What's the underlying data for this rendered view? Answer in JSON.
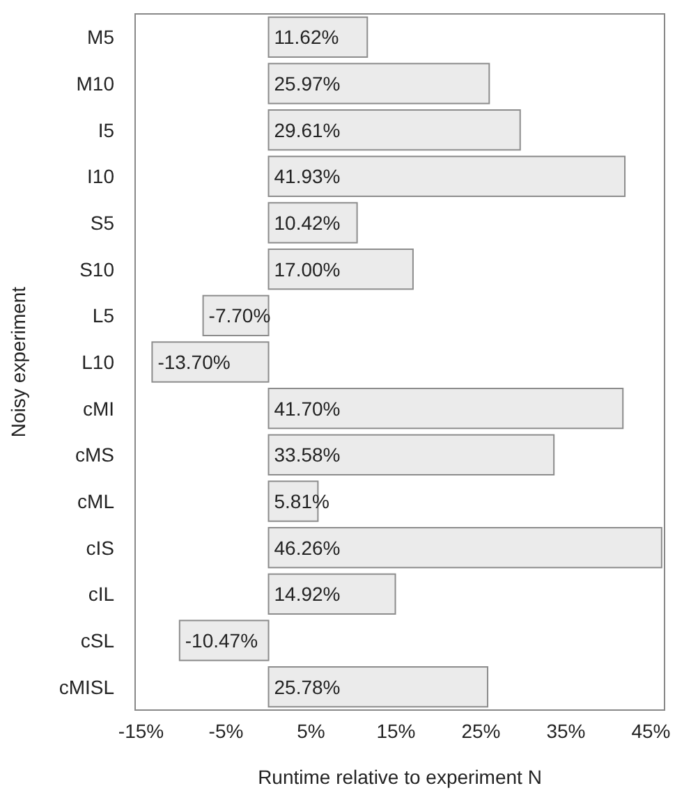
{
  "chart_data": {
    "type": "bar",
    "orientation": "horizontal",
    "xlabel": "Runtime relative to experiment N",
    "ylabel": "Noisy experiment",
    "categories": [
      "M5",
      "M10",
      "I5",
      "I10",
      "S5",
      "S10",
      "L5",
      "L10",
      "cMI",
      "cMS",
      "cML",
      "cIS",
      "cIL",
      "cSL",
      "cMISL"
    ],
    "values": [
      11.62,
      25.97,
      29.61,
      41.93,
      10.42,
      17.0,
      -7.7,
      -13.7,
      41.7,
      33.58,
      5.81,
      46.26,
      14.92,
      -10.47,
      25.78
    ],
    "value_labels": [
      "11.62%",
      "25.97%",
      "29.61%",
      "41.93%",
      "10.42%",
      "17.00%",
      "-7.70%",
      "-13.70%",
      "41.70%",
      "33.58%",
      "5.81%",
      "46.26%",
      "14.92%",
      "-10.47%",
      "25.78%"
    ],
    "color": "#ebebeb",
    "xlim": [
      -15.7,
      46.6
    ],
    "xticks": [
      {
        "value": -15,
        "label": "-15%"
      },
      {
        "value": -5,
        "label": "-5%"
      },
      {
        "value": 5,
        "label": "5%"
      },
      {
        "value": 15,
        "label": "15%"
      },
      {
        "value": 25,
        "label": "25%"
      },
      {
        "value": 35,
        "label": "35%"
      },
      {
        "value": 45,
        "label": "45%"
      }
    ],
    "grid": false
  }
}
